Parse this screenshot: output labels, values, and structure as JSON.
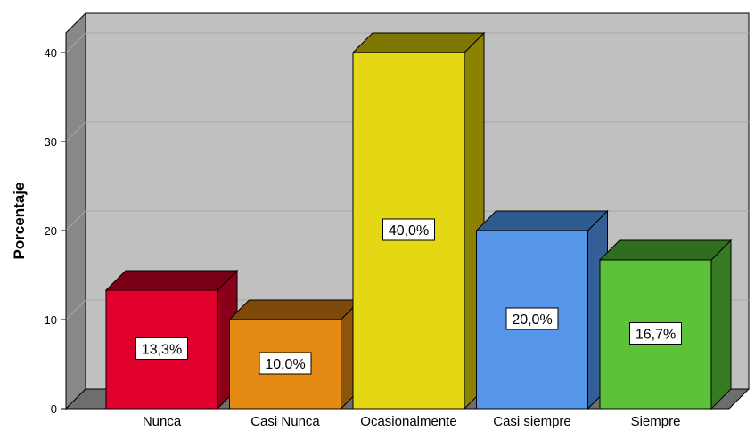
{
  "chart_data": {
    "type": "bar",
    "ylabel": "Porcentaje",
    "ylim": [
      0,
      40
    ],
    "yticks": [
      0,
      10,
      20,
      30,
      40
    ],
    "grid": true,
    "style": "3d",
    "categories": [
      "Nunca",
      "Casi Nunca",
      "Ocasionalmente",
      "Casi siempre",
      "Siempre"
    ],
    "values": [
      13.3,
      10.0,
      40.0,
      20.0,
      16.7
    ],
    "data_labels": [
      "13,3%",
      "10,0%",
      "40,0%",
      "20,0%",
      "16,7%"
    ],
    "colors": [
      "#e0002b",
      "#e58a12",
      "#e4d714",
      "#5596e8",
      "#5cc23a"
    ],
    "top_colors": [
      "#7a0017",
      "#7d4a0a",
      "#7d7600",
      "#2f5a8f",
      "#2f6e1e"
    ],
    "side_colors": [
      "#8a0019",
      "#8d540b",
      "#8a8200",
      "#345f96",
      "#367a22"
    ],
    "wall_color": "#c0c0c0",
    "wall_side_color": "#888888",
    "floor_color": "#6e6e6e"
  }
}
